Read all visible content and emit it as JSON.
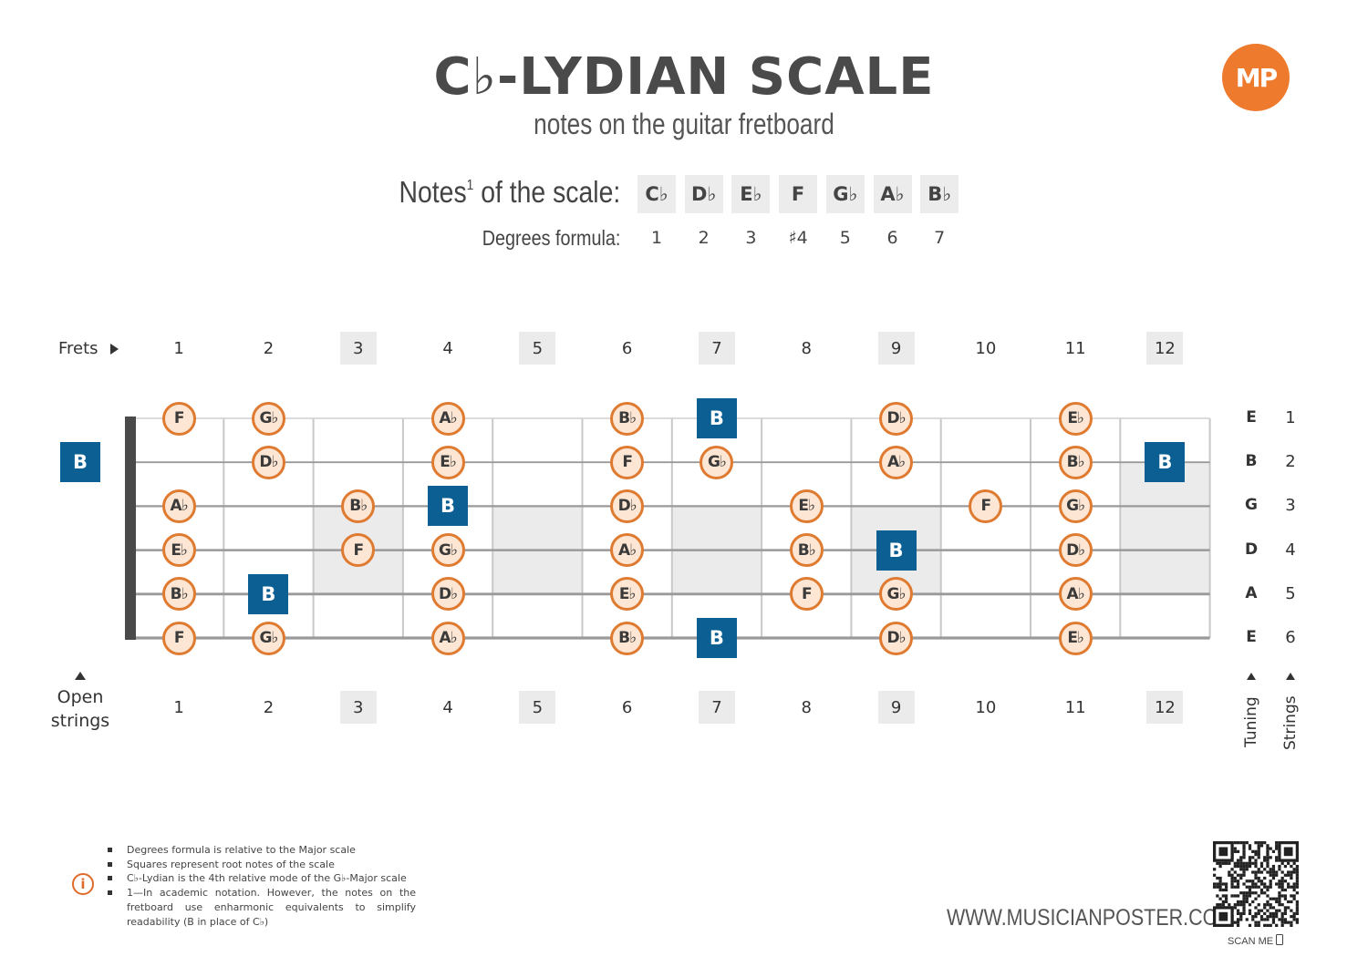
{
  "header": {
    "title": "C♭-LYDIAN SCALE",
    "subtitle": "notes on the guitar fretboard",
    "logo_text": "MP",
    "notes_label": "Notes",
    "notes_label_sup": "1",
    "notes_label_tail": " of the scale:",
    "degrees_label": "Degrees formula:"
  },
  "scale": {
    "notes": [
      "C♭",
      "D♭",
      "E♭",
      "F",
      "G♭",
      "A♭",
      "B♭"
    ],
    "degrees": [
      "1",
      "2",
      "3",
      "♯4",
      "5",
      "6",
      "7"
    ]
  },
  "fretboard": {
    "frets_label": "Frets",
    "open_label_1": "Open",
    "open_label_2": "strings",
    "fret_numbers": [
      "1",
      "2",
      "3",
      "4",
      "5",
      "6",
      "7",
      "8",
      "9",
      "10",
      "11",
      "12"
    ],
    "shaded_frets": [
      3,
      5,
      7,
      9,
      12
    ],
    "tuning": [
      "E",
      "B",
      "G",
      "D",
      "A",
      "E"
    ],
    "string_numbers": [
      "1",
      "2",
      "3",
      "4",
      "5",
      "6"
    ],
    "tuning_label": "Tuning",
    "strings_label": "Strings",
    "root_note": "B",
    "notes": [
      {
        "string": 1,
        "fret": 1,
        "note": "F"
      },
      {
        "string": 1,
        "fret": 2,
        "note": "G♭"
      },
      {
        "string": 1,
        "fret": 4,
        "note": "A♭"
      },
      {
        "string": 1,
        "fret": 6,
        "note": "B♭"
      },
      {
        "string": 1,
        "fret": 7,
        "note": "B",
        "root": true
      },
      {
        "string": 1,
        "fret": 9,
        "note": "D♭"
      },
      {
        "string": 1,
        "fret": 11,
        "note": "E♭"
      },
      {
        "string": 2,
        "fret": 0,
        "note": "B",
        "root": true
      },
      {
        "string": 2,
        "fret": 2,
        "note": "D♭"
      },
      {
        "string": 2,
        "fret": 4,
        "note": "E♭"
      },
      {
        "string": 2,
        "fret": 6,
        "note": "F"
      },
      {
        "string": 2,
        "fret": 7,
        "note": "G♭"
      },
      {
        "string": 2,
        "fret": 9,
        "note": "A♭"
      },
      {
        "string": 2,
        "fret": 11,
        "note": "B♭"
      },
      {
        "string": 2,
        "fret": 12,
        "note": "B",
        "root": true
      },
      {
        "string": 3,
        "fret": 1,
        "note": "A♭"
      },
      {
        "string": 3,
        "fret": 3,
        "note": "B♭"
      },
      {
        "string": 3,
        "fret": 4,
        "note": "B",
        "root": true
      },
      {
        "string": 3,
        "fret": 6,
        "note": "D♭"
      },
      {
        "string": 3,
        "fret": 8,
        "note": "E♭"
      },
      {
        "string": 3,
        "fret": 10,
        "note": "F"
      },
      {
        "string": 3,
        "fret": 11,
        "note": "G♭"
      },
      {
        "string": 4,
        "fret": 1,
        "note": "E♭"
      },
      {
        "string": 4,
        "fret": 3,
        "note": "F"
      },
      {
        "string": 4,
        "fret": 4,
        "note": "G♭"
      },
      {
        "string": 4,
        "fret": 6,
        "note": "A♭"
      },
      {
        "string": 4,
        "fret": 8,
        "note": "B♭"
      },
      {
        "string": 4,
        "fret": 9,
        "note": "B",
        "root": true
      },
      {
        "string": 4,
        "fret": 11,
        "note": "D♭"
      },
      {
        "string": 5,
        "fret": 1,
        "note": "B♭"
      },
      {
        "string": 5,
        "fret": 2,
        "note": "B",
        "root": true
      },
      {
        "string": 5,
        "fret": 4,
        "note": "D♭"
      },
      {
        "string": 5,
        "fret": 6,
        "note": "E♭"
      },
      {
        "string": 5,
        "fret": 8,
        "note": "F"
      },
      {
        "string": 5,
        "fret": 9,
        "note": "G♭"
      },
      {
        "string": 5,
        "fret": 11,
        "note": "A♭"
      },
      {
        "string": 6,
        "fret": 1,
        "note": "F"
      },
      {
        "string": 6,
        "fret": 2,
        "note": "G♭"
      },
      {
        "string": 6,
        "fret": 4,
        "note": "A♭"
      },
      {
        "string": 6,
        "fret": 6,
        "note": "B♭"
      },
      {
        "string": 6,
        "fret": 7,
        "note": "B",
        "root": true
      },
      {
        "string": 6,
        "fret": 9,
        "note": "D♭"
      },
      {
        "string": 6,
        "fret": 11,
        "note": "E♭"
      }
    ]
  },
  "footnotes": [
    "Degrees formula is relative to the Major scale",
    "Squares represent root notes of the scale",
    "C♭-Lydian is the 4th relative mode of the G♭-Major scale",
    "1—In academic notation. However, the notes on the fretboard use enharmonic equivalents to simplify readability (B in place of C♭)"
  ],
  "footer": {
    "website": "WWW.MUSICIANPOSTER.COM",
    "scan_label": "SCAN ME",
    "info_icon": "info-icon",
    "phone_icon": "phone-icon"
  },
  "colors": {
    "accent_orange": "#df7a31",
    "note_fill": "#fde6d3",
    "root_blue": "#0b5f93",
    "shade_gray": "#ebebeb"
  }
}
